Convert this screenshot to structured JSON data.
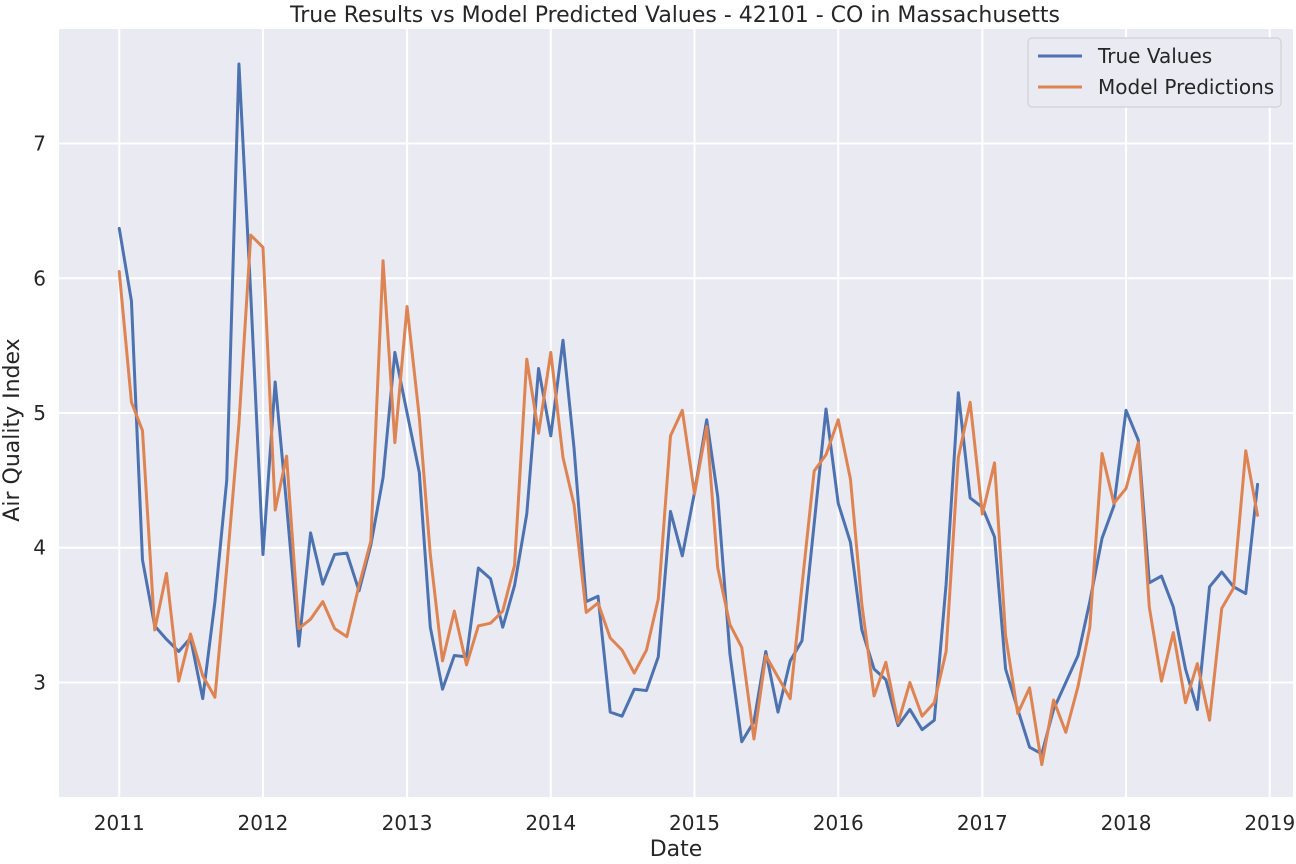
{
  "chart_data": {
    "type": "line",
    "title": "True Results vs Model Predicted Values - 42101 - CO in Massachusetts",
    "xlabel": "Date",
    "ylabel": "Air Quality Index",
    "xlim": [
      "2010-08-01",
      "2019-03-01"
    ],
    "ylim": [
      2.15,
      7.85
    ],
    "x_ticks": [
      "2011",
      "2012",
      "2013",
      "2014",
      "2015",
      "2016",
      "2017",
      "2018",
      "2019"
    ],
    "y_ticks": [
      "3",
      "4",
      "5",
      "6",
      "7"
    ],
    "grid": true,
    "legend_position": "top-right",
    "x": [
      "2011-01",
      "2011-02",
      "2011-03",
      "2011-04",
      "2011-05",
      "2011-06",
      "2011-07",
      "2011-08",
      "2011-09",
      "2011-10",
      "2011-11",
      "2011-12",
      "2012-01",
      "2012-02",
      "2012-03",
      "2012-04",
      "2012-05",
      "2012-06",
      "2012-07",
      "2012-08",
      "2012-09",
      "2012-10",
      "2012-11",
      "2012-12",
      "2013-01",
      "2013-02",
      "2013-03",
      "2013-04",
      "2013-05",
      "2013-06",
      "2013-07",
      "2013-08",
      "2013-09",
      "2013-10",
      "2013-11",
      "2013-12",
      "2014-01",
      "2014-02",
      "2014-03",
      "2014-04",
      "2014-05",
      "2014-06",
      "2014-07",
      "2014-08",
      "2014-09",
      "2014-10",
      "2014-11",
      "2014-12",
      "2015-01",
      "2015-02",
      "2015-03",
      "2015-04",
      "2015-05",
      "2015-06",
      "2015-07",
      "2015-08",
      "2015-09",
      "2015-10",
      "2015-11",
      "2015-12",
      "2016-01",
      "2016-02",
      "2016-03",
      "2016-04",
      "2016-05",
      "2016-06",
      "2016-07",
      "2016-08",
      "2016-09",
      "2016-10",
      "2016-11",
      "2016-12",
      "2017-01",
      "2017-02",
      "2017-03",
      "2017-04",
      "2017-05",
      "2017-06",
      "2017-07",
      "2017-08",
      "2017-09",
      "2017-10",
      "2017-11",
      "2017-12",
      "2018-01",
      "2018-02",
      "2018-03",
      "2018-04",
      "2018-05",
      "2018-06",
      "2018-07",
      "2018-08",
      "2018-09",
      "2018-10",
      "2018-11",
      "2018-12"
    ],
    "series": [
      {
        "name": "True Values",
        "color": "#4c72b0",
        "values": [
          6.37,
          5.83,
          3.91,
          3.42,
          3.32,
          3.23,
          3.33,
          2.88,
          3.6,
          4.5,
          7.59,
          5.88,
          3.95,
          5.23,
          4.32,
          3.27,
          4.11,
          3.73,
          3.95,
          3.96,
          3.68,
          4.02,
          4.52,
          5.45,
          5.0,
          4.56,
          3.41,
          2.95,
          3.2,
          3.19,
          3.85,
          3.77,
          3.41,
          3.72,
          4.25,
          5.33,
          4.83,
          5.54,
          4.74,
          3.6,
          3.64,
          2.78,
          2.75,
          2.95,
          2.94,
          3.19,
          4.27,
          3.94,
          4.41,
          4.95,
          4.38,
          3.21,
          2.56,
          2.71,
          3.23,
          2.78,
          3.16,
          3.31,
          4.18,
          5.03,
          4.33,
          4.04,
          3.39,
          3.1,
          3.02,
          2.68,
          2.8,
          2.65,
          2.72,
          3.73,
          5.15,
          4.37,
          4.3,
          4.08,
          3.1,
          2.8,
          2.52,
          2.47,
          2.8,
          3.0,
          3.2,
          3.6,
          4.07,
          4.31,
          5.02,
          4.8,
          3.74,
          3.79,
          3.56,
          3.1,
          2.8,
          3.71,
          3.82,
          3.71,
          3.66,
          4.47
        ]
      },
      {
        "name": "Model Predictions",
        "color": "#dd8452",
        "values": [
          6.05,
          5.08,
          4.87,
          3.39,
          3.81,
          3.01,
          3.36,
          3.05,
          2.89,
          3.85,
          4.92,
          6.32,
          6.23,
          4.28,
          4.68,
          3.4,
          3.47,
          3.6,
          3.4,
          3.34,
          3.72,
          4.05,
          6.13,
          4.78,
          5.79,
          4.97,
          3.95,
          3.16,
          3.53,
          3.13,
          3.42,
          3.44,
          3.53,
          3.87,
          5.4,
          4.85,
          5.45,
          4.67,
          4.32,
          3.52,
          3.59,
          3.33,
          3.24,
          3.07,
          3.24,
          3.62,
          4.83,
          5.02,
          4.4,
          4.9,
          3.85,
          3.43,
          3.26,
          2.58,
          3.2,
          3.04,
          2.88,
          3.72,
          4.57,
          4.69,
          4.95,
          4.51,
          3.58,
          2.9,
          3.15,
          2.7,
          3.0,
          2.75,
          2.85,
          3.23,
          4.67,
          5.08,
          4.25,
          4.63,
          3.35,
          2.77,
          2.96,
          2.39,
          2.87,
          2.63,
          2.97,
          3.41,
          4.7,
          4.33,
          4.44,
          4.78,
          3.56,
          3.01,
          3.37,
          2.85,
          3.14,
          2.72,
          3.55,
          3.7,
          4.72,
          4.24
        ]
      }
    ]
  }
}
